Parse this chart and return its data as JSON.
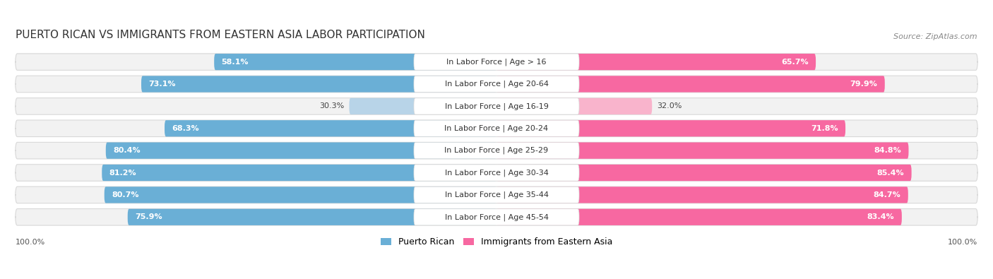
{
  "title": "PUERTO RICAN VS IMMIGRANTS FROM EASTERN ASIA LABOR PARTICIPATION",
  "source": "Source: ZipAtlas.com",
  "categories": [
    "In Labor Force | Age > 16",
    "In Labor Force | Age 20-64",
    "In Labor Force | Age 16-19",
    "In Labor Force | Age 20-24",
    "In Labor Force | Age 25-29",
    "In Labor Force | Age 30-34",
    "In Labor Force | Age 35-44",
    "In Labor Force | Age 45-54"
  ],
  "puerto_rican": [
    58.1,
    73.1,
    30.3,
    68.3,
    80.4,
    81.2,
    80.7,
    75.9
  ],
  "eastern_asia": [
    65.7,
    79.9,
    32.0,
    71.8,
    84.8,
    85.4,
    84.7,
    83.4
  ],
  "pr_color_strong": "#6aafd6",
  "pr_color_light": "#b8d4e8",
  "ea_color_strong": "#f768a1",
  "ea_color_light": "#f9b4cc",
  "row_bg_color": "#f2f2f2",
  "row_edge_color": "#d8d8d8",
  "label_bg_color": "#ffffff",
  "title_fontsize": 11,
  "label_fontsize": 8,
  "value_fontsize": 8,
  "legend_fontsize": 9,
  "footer_fontsize": 8,
  "pr_threshold": 50,
  "ea_threshold": 50
}
